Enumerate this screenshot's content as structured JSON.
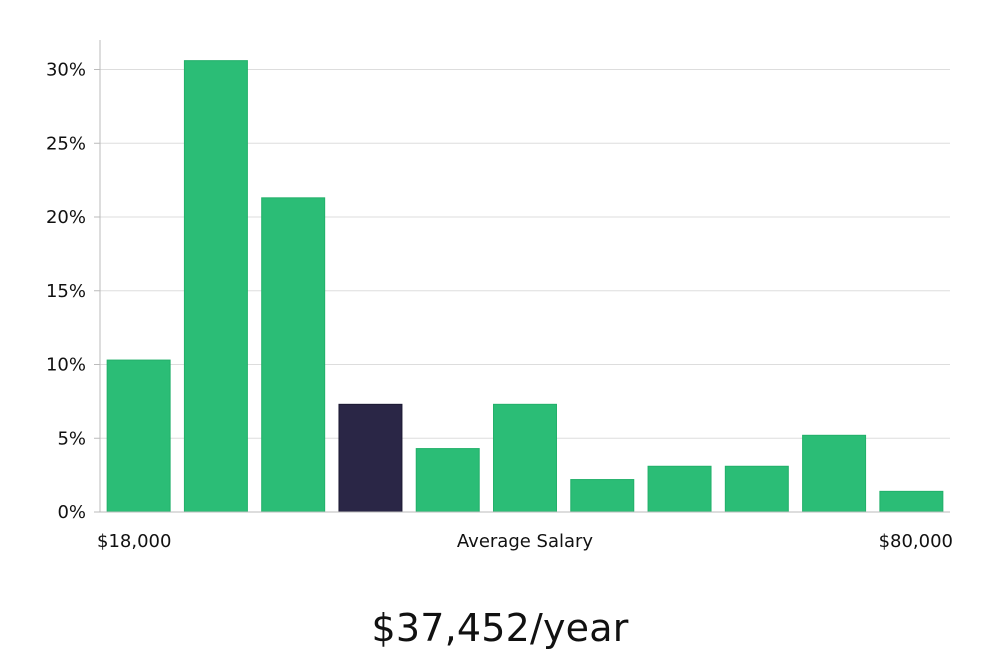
{
  "chart_data": {
    "type": "bar",
    "categories": [
      "1",
      "2",
      "3",
      "4",
      "5",
      "6",
      "7",
      "8",
      "9",
      "10",
      "11"
    ],
    "values": [
      10.3,
      30.6,
      21.3,
      7.3,
      4.3,
      7.3,
      2.2,
      3.1,
      3.1,
      5.2,
      1.4
    ],
    "highlight_index": 3,
    "y_ticks": [
      0,
      5,
      10,
      15,
      20,
      25,
      30
    ],
    "y_tick_labels": [
      "0%",
      "5%",
      "10%",
      "15%",
      "20%",
      "25%",
      "30%"
    ],
    "ylim": [
      0,
      32
    ],
    "x_tick_labels": {
      "left": "$18,000",
      "center": "Average Salary",
      "right": "$80,000"
    },
    "xlabel": "",
    "ylabel": "",
    "title": "",
    "grid": true,
    "colors": {
      "bar": "#2bbd76",
      "highlight_bar": "#2a2646",
      "grid": "#dddddd",
      "axis": "#bbbbbb",
      "text": "#111111"
    }
  },
  "summary": {
    "salary_text": "$37,452/year"
  }
}
